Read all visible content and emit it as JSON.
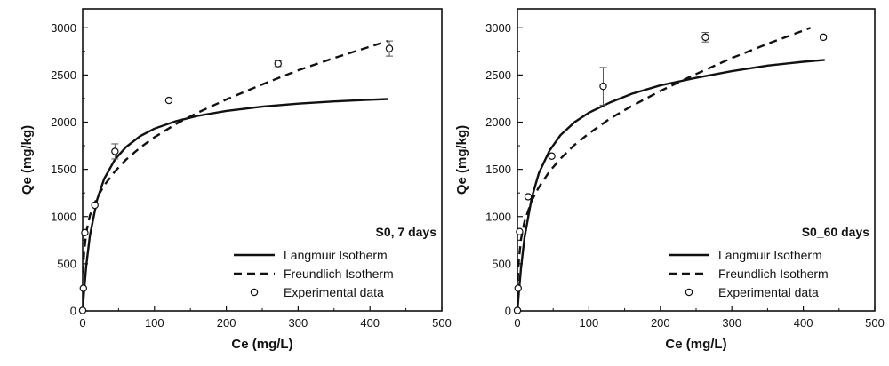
{
  "chart_data": [
    {
      "type": "scatter",
      "panel_label": "S0, 7 days",
      "xlabel": "Ce (mg/L)",
      "ylabel": "Qe (mg/kg)",
      "xlim": [
        0,
        500
      ],
      "ylim": [
        0,
        3200
      ],
      "xticks": [
        0,
        100,
        200,
        300,
        400,
        500
      ],
      "yticks": [
        0,
        500,
        1000,
        1500,
        2000,
        2500,
        3000
      ],
      "grid": false,
      "legend_position": "bottom-right",
      "series": [
        {
          "name": "Langmuir Isotherm",
          "kind": "line",
          "style": "solid",
          "x": [
            0,
            2,
            5,
            10,
            20,
            30,
            45,
            60,
            80,
            100,
            130,
            160,
            200,
            250,
            300,
            350,
            400,
            425
          ],
          "y": [
            0,
            213,
            478,
            796,
            1177,
            1400,
            1606,
            1734,
            1851,
            1931,
            2010,
            2066,
            2119,
            2164,
            2196,
            2219,
            2237,
            2245
          ]
        },
        {
          "name": "Freundlich Isotherm",
          "kind": "line",
          "style": "dashed",
          "x": [
            0.5,
            2,
            5,
            10,
            20,
            30,
            45,
            60,
            80,
            100,
            130,
            160,
            200,
            250,
            300,
            350,
            400,
            425
          ],
          "y": [
            400,
            620,
            830,
            1010,
            1200,
            1330,
            1480,
            1600,
            1730,
            1840,
            1980,
            2100,
            2240,
            2400,
            2550,
            2680,
            2800,
            2860
          ]
        },
        {
          "name": "Experimental data",
          "kind": "scatter",
          "marker": "open-circle",
          "x": [
            0,
            1,
            3,
            17,
            45,
            120,
            272,
            427
          ],
          "y": [
            5,
            240,
            830,
            1120,
            1690,
            2230,
            2620,
            2780
          ],
          "error": [
            0,
            0,
            0,
            0,
            80,
            0,
            30,
            80
          ]
        }
      ]
    },
    {
      "type": "scatter",
      "panel_label": "S0_60 days",
      "xlabel": "Ce (mg/L)",
      "ylabel": "Qe (mg/kg)",
      "xlim": [
        0,
        500
      ],
      "ylim": [
        0,
        3200
      ],
      "xticks": [
        0,
        100,
        200,
        300,
        400,
        500
      ],
      "yticks": [
        0,
        500,
        1000,
        1500,
        2000,
        2500,
        3000
      ],
      "grid": false,
      "legend_position": "bottom-right",
      "series": [
        {
          "name": "Langmuir Isotherm",
          "kind": "line",
          "style": "solid",
          "x": [
            0,
            2,
            5,
            10,
            20,
            30,
            45,
            60,
            80,
            100,
            130,
            160,
            200,
            250,
            300,
            350,
            400,
            430
          ],
          "y": [
            0,
            197,
            453,
            780,
            1200,
            1460,
            1700,
            1860,
            2000,
            2100,
            2210,
            2300,
            2390,
            2470,
            2540,
            2600,
            2640,
            2660
          ]
        },
        {
          "name": "Freundlich Isotherm",
          "kind": "line",
          "style": "dashed",
          "x": [
            0.5,
            2,
            5,
            10,
            20,
            30,
            45,
            60,
            80,
            100,
            130,
            160,
            200,
            250,
            300,
            350,
            400,
            410
          ],
          "y": [
            320,
            540,
            760,
            950,
            1170,
            1310,
            1480,
            1610,
            1760,
            1880,
            2040,
            2170,
            2330,
            2510,
            2680,
            2830,
            2970,
            3000
          ]
        },
        {
          "name": "Experimental data",
          "kind": "scatter",
          "marker": "open-circle",
          "x": [
            0,
            1,
            3,
            15,
            48,
            120,
            263,
            428
          ],
          "y": [
            5,
            240,
            840,
            1210,
            1640,
            2380,
            2900,
            2900
          ],
          "error": [
            0,
            0,
            0,
            0,
            0,
            200,
            50,
            20
          ]
        }
      ]
    }
  ]
}
